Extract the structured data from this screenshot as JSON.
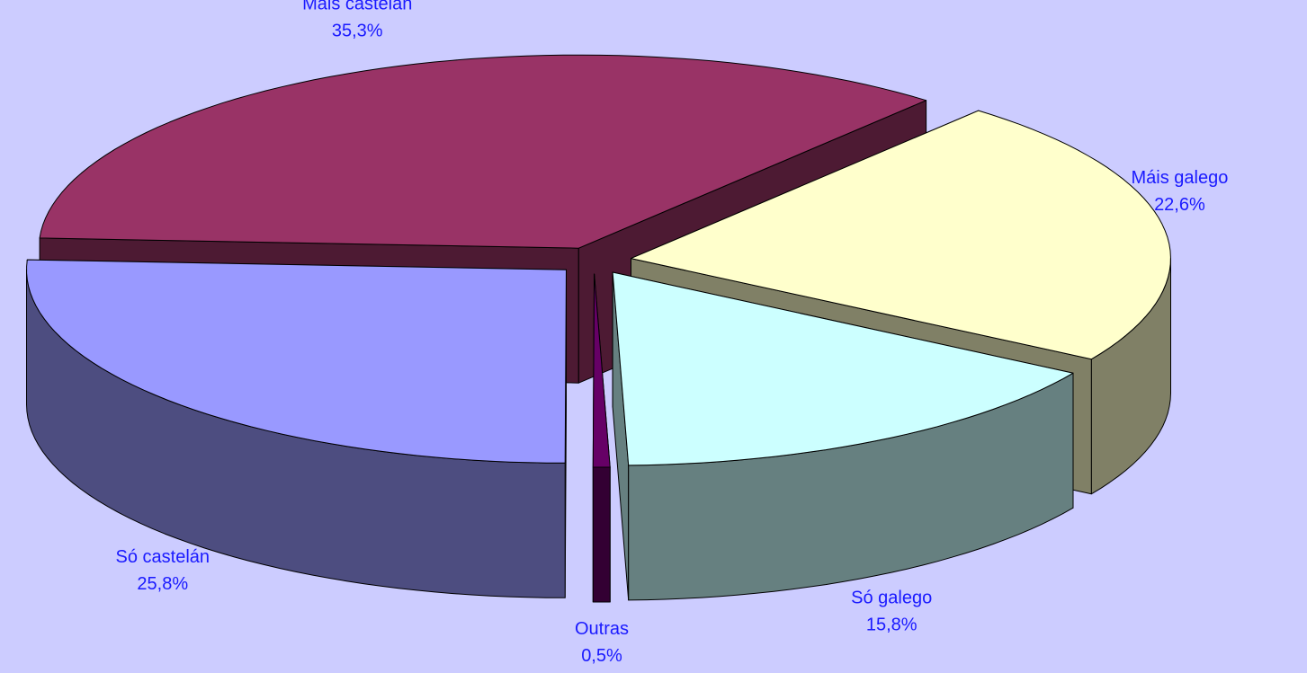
{
  "chart_data": {
    "type": "pie3d",
    "categories": [
      "Máis castelán",
      "Máis galego",
      "Só galego",
      "Outras",
      "Só castelán"
    ],
    "values": [
      35.3,
      22.6,
      15.8,
      0.5,
      25.8
    ],
    "value_labels": [
      "35,3%",
      "22,6%",
      "15,8%",
      "0,5%",
      "25,8%"
    ],
    "colors": [
      "#993366",
      "#ffffcc",
      "#ccffff",
      "#660066",
      "#9999ff"
    ],
    "background": "#ccccff",
    "label_color": "#1a1aff"
  }
}
